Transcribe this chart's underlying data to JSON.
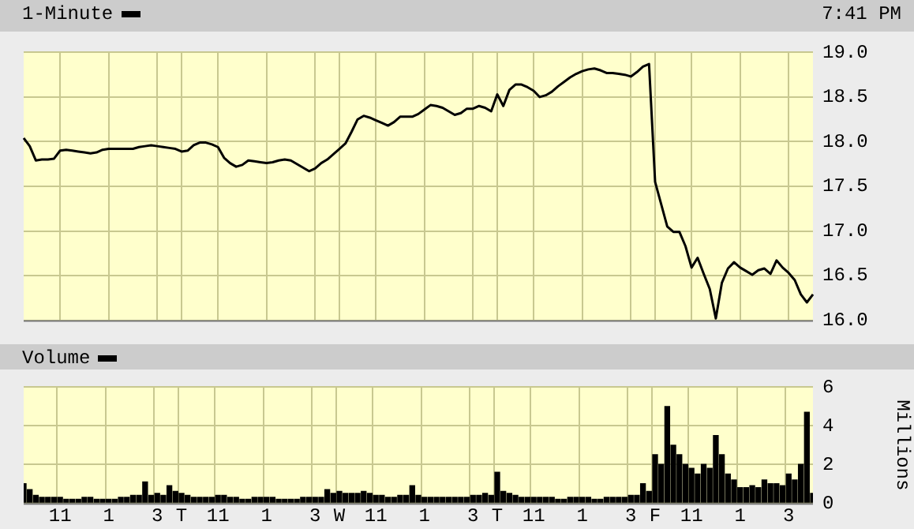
{
  "chart_data": [
    {
      "type": "line",
      "legend": "top left",
      "annotations": [
        "7:41 PM"
      ],
      "grid": true,
      "tick_labels": "y",
      "ylim": [
        16,
        19
      ],
      "categories": [
        null,
        null,
        null,
        null,
        null,
        null,
        null,
        null,
        null,
        null,
        null,
        null,
        null,
        null,
        null,
        null,
        null,
        null,
        null,
        null,
        null,
        null,
        null,
        null,
        null,
        null,
        null,
        null,
        null,
        null,
        null,
        null,
        null,
        null,
        null,
        null,
        null,
        null,
        null,
        null,
        null,
        null,
        null,
        null,
        null,
        null,
        null,
        null,
        null,
        null,
        null,
        null,
        null,
        null,
        null,
        null,
        null,
        null,
        null,
        null,
        null,
        null,
        null,
        null,
        null,
        null,
        null,
        null,
        null,
        null,
        null,
        null,
        null,
        null,
        null,
        null,
        null,
        null,
        null,
        null,
        null,
        null,
        null,
        null,
        null,
        null,
        null,
        null,
        null,
        null,
        null,
        null,
        null,
        null,
        null,
        null,
        null,
        null,
        null,
        null,
        null,
        null,
        null,
        null,
        null,
        null,
        null,
        null,
        null,
        null,
        null,
        null,
        null,
        null,
        null,
        null,
        null,
        null,
        null,
        null,
        null,
        null,
        null,
        null,
        null,
        null,
        null,
        null,
        null,
        null,
        null
      ],
      "yticks": [
        {
          "value": 16,
          "label": "16.0"
        },
        {
          "value": 16.5,
          "label": "16.5"
        },
        {
          "value": 17,
          "label": "17.0"
        },
        {
          "value": 17.5,
          "label": "17.5"
        },
        {
          "value": 18,
          "label": "18.0"
        },
        {
          "value": 18.5,
          "label": "18.5"
        },
        {
          "value": 19,
          "label": "19.0"
        }
      ],
      "series": [
        {
          "name": "1-Minute",
          "color": "#000000",
          "values": [
            18.04,
            17.95,
            17.79,
            17.8,
            17.8,
            17.81,
            17.9,
            17.91,
            17.9,
            17.89,
            17.88,
            17.87,
            17.88,
            17.91,
            17.92,
            17.92,
            17.92,
            17.92,
            17.92,
            17.94,
            17.95,
            17.96,
            17.95,
            17.94,
            17.93,
            17.92,
            17.89,
            17.9,
            17.96,
            17.99,
            17.99,
            17.97,
            17.94,
            17.82,
            17.76,
            17.72,
            17.74,
            17.79,
            17.78,
            17.77,
            17.76,
            17.77,
            17.79,
            17.8,
            17.79,
            17.75,
            17.71,
            17.67,
            17.7,
            17.76,
            17.8,
            17.86,
            17.92,
            17.98,
            18.11,
            18.25,
            18.29,
            18.27,
            18.24,
            18.21,
            18.18,
            18.22,
            18.28,
            18.28,
            18.28,
            18.31,
            18.36,
            18.41,
            18.4,
            18.38,
            18.34,
            18.3,
            18.32,
            18.37,
            18.37,
            18.4,
            18.38,
            18.34,
            18.53,
            18.4,
            18.58,
            18.64,
            18.64,
            18.61,
            18.57,
            18.5,
            18.52,
            18.56,
            18.62,
            18.67,
            18.72,
            18.76,
            18.79,
            18.81,
            18.82,
            18.8,
            18.77,
            18.77,
            18.76,
            18.75,
            18.73,
            18.78,
            18.84,
            18.87,
            17.55,
            17.3,
            17.05,
            16.99,
            16.99,
            16.83,
            16.59,
            16.7,
            16.52,
            16.35,
            16.02,
            16.42,
            16.58,
            16.65,
            16.59,
            16.55,
            16.51,
            16.56,
            16.58,
            16.52,
            16.67,
            16.59,
            16.53,
            16.45,
            16.29,
            16.2,
            16.29
          ]
        }
      ]
    },
    {
      "type": "bar",
      "legend": "top left",
      "grid": true,
      "ylim": [
        0,
        6
      ],
      "yticks": [
        0,
        2,
        4,
        6
      ],
      "y2label": "Millions",
      "categories": [
        null,
        null,
        null,
        null,
        null,
        null,
        "11",
        null,
        null,
        null,
        null,
        null,
        null,
        null,
        "1",
        null,
        null,
        null,
        null,
        null,
        null,
        null,
        "3",
        null,
        null,
        null,
        "T",
        null,
        null,
        null,
        null,
        null,
        "11",
        null,
        null,
        null,
        null,
        null,
        null,
        null,
        "1",
        null,
        null,
        null,
        null,
        null,
        null,
        null,
        "3",
        null,
        null,
        null,
        "W",
        null,
        null,
        null,
        null,
        null,
        "11",
        null,
        null,
        null,
        null,
        null,
        null,
        null,
        "1",
        null,
        null,
        null,
        null,
        null,
        null,
        null,
        "3",
        null,
        null,
        null,
        "T",
        null,
        null,
        null,
        null,
        null,
        "11",
        null,
        null,
        null,
        null,
        null,
        null,
        null,
        "1",
        null,
        null,
        null,
        null,
        null,
        null,
        null,
        "3",
        null,
        null,
        null,
        "F",
        null,
        null,
        null,
        null,
        null,
        "11",
        null,
        null,
        null,
        null,
        null,
        null,
        null,
        "1",
        null,
        null,
        null,
        null,
        null,
        null,
        null,
        "3",
        null,
        null,
        null,
        null
      ],
      "series": [
        {
          "name": "Volume",
          "color": "#000000",
          "values": [
            1.0,
            0.7,
            0.4,
            0.3,
            0.3,
            0.3,
            0.3,
            0.2,
            0.2,
            0.2,
            0.3,
            0.3,
            0.2,
            0.2,
            0.2,
            0.2,
            0.3,
            0.3,
            0.4,
            0.4,
            1.1,
            0.4,
            0.5,
            0.4,
            0.9,
            0.6,
            0.5,
            0.4,
            0.3,
            0.3,
            0.3,
            0.3,
            0.4,
            0.4,
            0.3,
            0.3,
            0.2,
            0.2,
            0.3,
            0.3,
            0.3,
            0.3,
            0.2,
            0.2,
            0.2,
            0.2,
            0.3,
            0.3,
            0.3,
            0.3,
            0.7,
            0.5,
            0.6,
            0.5,
            0.5,
            0.5,
            0.6,
            0.5,
            0.4,
            0.4,
            0.3,
            0.3,
            0.4,
            0.4,
            0.9,
            0.4,
            0.3,
            0.3,
            0.3,
            0.3,
            0.3,
            0.3,
            0.3,
            0.3,
            0.4,
            0.4,
            0.5,
            0.4,
            1.6,
            0.6,
            0.5,
            0.4,
            0.3,
            0.3,
            0.3,
            0.3,
            0.3,
            0.3,
            0.2,
            0.2,
            0.3,
            0.3,
            0.3,
            0.3,
            0.2,
            0.2,
            0.3,
            0.3,
            0.3,
            0.3,
            0.4,
            0.4,
            1.0,
            0.6,
            2.5,
            2.0,
            5.0,
            3.0,
            2.5,
            2.0,
            1.8,
            1.5,
            2.0,
            1.8,
            3.5,
            2.5,
            1.5,
            1.2,
            0.8,
            0.8,
            0.9,
            0.8,
            1.2,
            1.0,
            1.0,
            0.9,
            1.5,
            1.2,
            2.0,
            4.7,
            0.5
          ]
        }
      ]
    }
  ]
}
